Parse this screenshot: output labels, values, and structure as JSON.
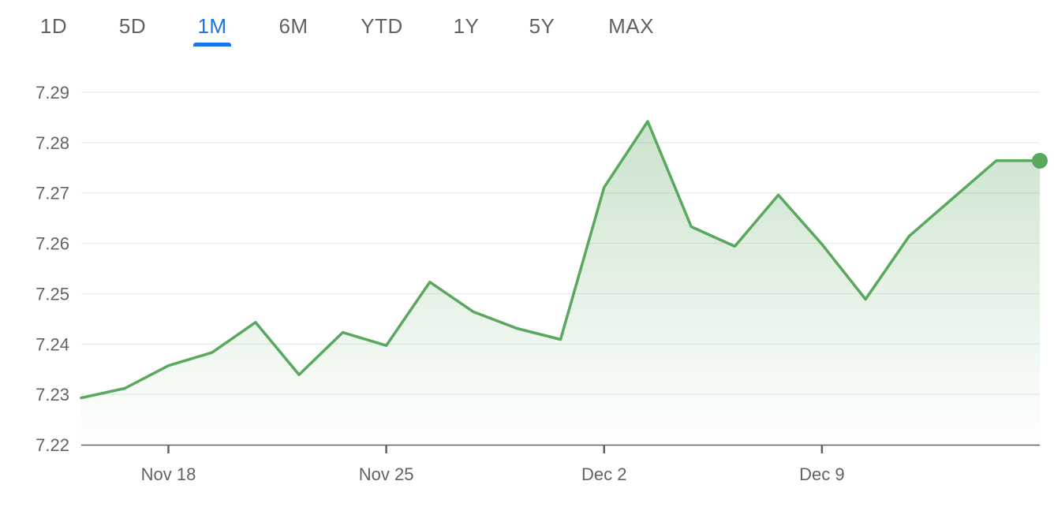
{
  "range_tabs": [
    {
      "label": "1D",
      "active": false
    },
    {
      "label": "5D",
      "active": false
    },
    {
      "label": "1M",
      "active": true
    },
    {
      "label": "6M",
      "active": false
    },
    {
      "label": "YTD",
      "active": false
    },
    {
      "label": "1Y",
      "active": false
    },
    {
      "label": "5Y",
      "active": false
    },
    {
      "label": "MAX",
      "active": false
    }
  ],
  "colors": {
    "line": "#5aa75e",
    "fill": "#5aa75e",
    "active_tab": "#1a73e8",
    "tab": "#5f6368",
    "grid": "#e8eaed",
    "axis": "#5f6368"
  },
  "chart_data": {
    "type": "area",
    "title": "",
    "xlabel": "",
    "ylabel": "",
    "ylim": [
      7.22,
      7.29
    ],
    "y_ticks": [
      "7.29",
      "7.28",
      "7.27",
      "7.26",
      "7.25",
      "7.24",
      "7.23",
      "7.22"
    ],
    "y_tick_values": [
      7.29,
      7.28,
      7.27,
      7.26,
      7.25,
      7.24,
      7.23,
      7.22
    ],
    "x_ticks": [
      "Nov 18",
      "Nov 25",
      "Dec 2",
      "Dec 9"
    ],
    "x_tick_dates": [
      "2024-11-18",
      "2024-11-25",
      "2024-12-02",
      "2024-12-09"
    ],
    "grid": true,
    "series": [
      {
        "x": [
          "2024-11-14",
          "2024-11-15",
          "2024-11-18",
          "2024-11-19",
          "2024-11-20",
          "2024-11-21",
          "2024-11-22",
          "2024-11-25",
          "2024-11-26",
          "2024-11-27",
          "2024-11-28",
          "2024-11-29",
          "2024-12-02",
          "2024-12-03",
          "2024-12-04",
          "2024-12-05",
          "2024-12-06",
          "2024-12-09",
          "2024-12-10",
          "2024-12-11",
          "2024-12-12",
          "2024-12-13",
          "2024-12-16"
        ],
        "values": [
          7.2293,
          7.2312,
          7.2357,
          7.2383,
          7.2443,
          7.2339,
          7.2423,
          7.2397,
          7.2523,
          7.2464,
          7.2431,
          7.2409,
          7.2711,
          7.2842,
          7.2633,
          7.2594,
          7.2696,
          7.2598,
          7.2489,
          7.2614,
          7.2689,
          7.2764,
          7.2764
        ]
      }
    ]
  }
}
